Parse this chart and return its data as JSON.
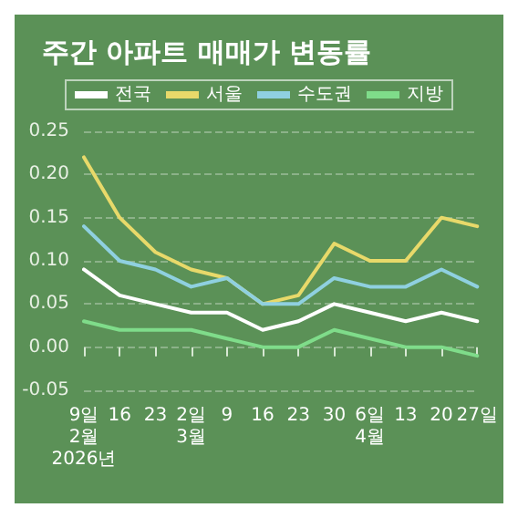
{
  "chart_data": {
    "type": "line",
    "title": "주간 아파트 매매가 변동률",
    "categories": [
      "9일\n2월\n2026년",
      "16",
      "23",
      "2일\n3월",
      "9",
      "16",
      "23",
      "30",
      "6일\n4월",
      "13",
      "20",
      "27일"
    ],
    "series": [
      {
        "name": "전국",
        "color": "#ffffff",
        "values": [
          0.09,
          0.06,
          0.05,
          0.04,
          0.04,
          0.02,
          0.03,
          0.05,
          0.04,
          0.03,
          0.04,
          0.03
        ]
      },
      {
        "name": "서울",
        "color": "#e8d96a",
        "values": [
          0.22,
          0.15,
          0.11,
          0.09,
          0.08,
          0.05,
          0.06,
          0.12,
          0.1,
          0.1,
          0.15,
          0.14
        ]
      },
      {
        "name": "수도권",
        "color": "#8fd0e0",
        "values": [
          0.14,
          0.1,
          0.09,
          0.07,
          0.08,
          0.05,
          0.05,
          0.08,
          0.07,
          0.07,
          0.09,
          0.07
        ]
      },
      {
        "name": "지방",
        "color": "#7fdc8a",
        "values": [
          0.03,
          0.02,
          0.02,
          0.02,
          0.01,
          0.0,
          0.0,
          0.02,
          0.01,
          0.0,
          0.0,
          -0.01
        ]
      }
    ],
    "ylim": [
      -0.05,
      0.25
    ],
    "yticks": [
      -0.05,
      {
        "value": 0,
        "label": "0.00"
      },
      0.05,
      {
        "value": 0.1,
        "label": "0.10"
      },
      0.15,
      {
        "value": 0.2,
        "label": "0.20"
      },
      0.25
    ],
    "grid": "y",
    "legend": "top",
    "line_style": "solid"
  }
}
